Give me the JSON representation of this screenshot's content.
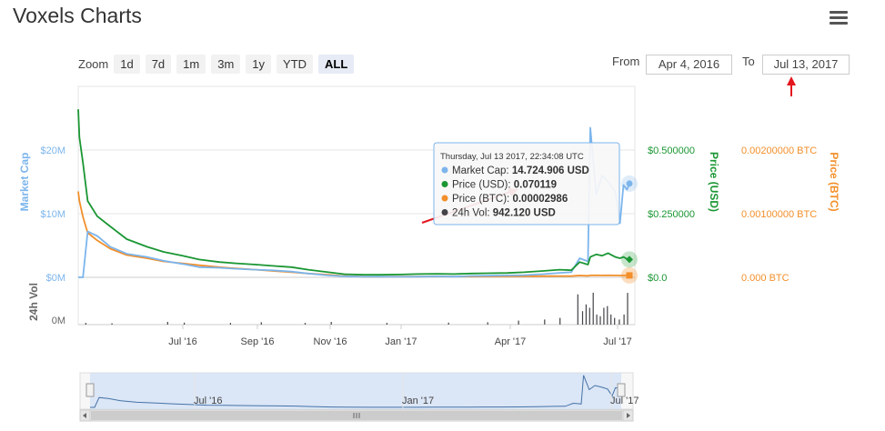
{
  "app_title": "Voxels Charts",
  "range_selector": {
    "zoom_label": "Zoom",
    "buttons": [
      "1d",
      "7d",
      "1m",
      "3m",
      "1y",
      "YTD",
      "ALL"
    ],
    "active": "ALL",
    "from_label": "From",
    "from_value": "Apr 4, 2016",
    "to_label": "To",
    "to_value": "Jul 13, 2017"
  },
  "chart_data": {
    "type": "line",
    "x_ticks": [
      "Jul '16",
      "Sep '16",
      "Nov '16",
      "Jan '17",
      "Apr '17",
      "Jul '17"
    ],
    "navigator_ticks": [
      "Jul '16",
      "Jan '17",
      "Jul '17"
    ],
    "axes": {
      "market_cap": {
        "title": "Market Cap",
        "ticks": [
          "$20M",
          "$10M",
          "$0M"
        ],
        "ylim": [
          0,
          20000000
        ]
      },
      "price_usd": {
        "title": "Price (USD)",
        "ticks": [
          "$0.500000",
          "$0.250000",
          "$0.0"
        ],
        "ylim": [
          0,
          0.5
        ]
      },
      "price_btc": {
        "title": "Price (BTC)",
        "ticks": [
          "0.00200000 BTC",
          "0.00100000 BTC",
          "0.000 BTC"
        ],
        "ylim": [
          0,
          0.002
        ]
      },
      "volume": {
        "title": "24h Vol",
        "ticks": [
          "0M"
        ]
      }
    },
    "x": [
      "2016-04-04",
      "2016-04-05",
      "2016-04-08",
      "2016-04-12",
      "2016-04-20",
      "2016-05-01",
      "2016-05-15",
      "2016-06-01",
      "2016-06-15",
      "2016-07-01",
      "2016-07-15",
      "2016-08-01",
      "2016-08-15",
      "2016-09-01",
      "2016-09-15",
      "2016-10-01",
      "2016-10-15",
      "2016-11-01",
      "2016-11-15",
      "2016-12-01",
      "2016-12-15",
      "2017-01-01",
      "2017-01-15",
      "2017-02-01",
      "2017-02-15",
      "2017-03-01",
      "2017-03-15",
      "2017-04-01",
      "2017-04-15",
      "2017-05-01",
      "2017-05-15",
      "2017-05-25",
      "2017-06-01",
      "2017-06-08",
      "2017-06-10",
      "2017-06-15",
      "2017-06-20",
      "2017-06-25",
      "2017-07-01",
      "2017-07-05",
      "2017-07-08",
      "2017-07-11",
      "2017-07-13"
    ],
    "series": [
      {
        "name": "Market Cap",
        "axis": "market_cap",
        "color": "#7cb5ec",
        "values": [
          0,
          0,
          0,
          7200000,
          6500000,
          4800000,
          3700000,
          3200000,
          2600000,
          2100000,
          1600000,
          1500000,
          1350000,
          1200000,
          1100000,
          900000,
          600000,
          300000,
          150000,
          80000,
          100000,
          90000,
          100000,
          150000,
          120000,
          220000,
          260000,
          300000,
          350000,
          500000,
          700000,
          800000,
          3000000,
          2500000,
          23500000,
          13000000,
          16000000,
          15000000,
          13500000,
          8500000,
          14500000,
          13800000,
          14724906
        ]
      },
      {
        "name": "Price (USD)",
        "axis": "price_usd",
        "color": "#1a9633",
        "values": [
          0.66,
          0.55,
          0.45,
          0.3,
          0.24,
          0.2,
          0.15,
          0.12,
          0.1,
          0.085,
          0.07,
          0.06,
          0.055,
          0.05,
          0.045,
          0.04,
          0.03,
          0.02,
          0.012,
          0.01,
          0.01,
          0.011,
          0.013,
          0.014,
          0.013,
          0.015,
          0.016,
          0.017,
          0.02,
          0.025,
          0.03,
          0.028,
          0.06,
          0.05,
          0.08,
          0.09,
          0.085,
          0.095,
          0.08,
          0.075,
          0.08,
          0.072,
          0.070119
        ]
      },
      {
        "name": "Price (BTC)",
        "axis": "price_btc",
        "color": "#f28f2a",
        "values": [
          0.00135,
          0.0012,
          0.00095,
          0.0007,
          0.00058,
          0.00045,
          0.00035,
          0.0003,
          0.00025,
          0.00022,
          0.00019,
          0.00016,
          0.00014,
          0.00012,
          0.0001,
          8e-05,
          6e-05,
          4e-05,
          2e-05,
          1e-05,
          1e-05,
          1.2e-05,
          1.2e-05,
          1.4e-05,
          1.3e-05,
          1.3e-05,
          1.4e-05,
          1.5e-05,
          1.6e-05,
          1.8e-05,
          2e-05,
          2e-05,
          2.8e-05,
          2.5e-05,
          3e-05,
          3.2e-05,
          3e-05,
          3.1e-05,
          3e-05,
          2.9e-05,
          3e-05,
          3e-05,
          2.986e-05
        ]
      }
    ],
    "volume": {
      "name": "24h Vol",
      "color": "#434348",
      "x": [
        "2016-04-10",
        "2016-05-02",
        "2016-06-18",
        "2016-07-02",
        "2016-08-10",
        "2016-09-05",
        "2016-10-12",
        "2016-11-03",
        "2016-12-20",
        "2017-02-10",
        "2017-03-15",
        "2017-04-10",
        "2017-05-02",
        "2017-05-15",
        "2017-05-30",
        "2017-06-03",
        "2017-06-06",
        "2017-06-09",
        "2017-06-12",
        "2017-06-15",
        "2017-06-18",
        "2017-06-21",
        "2017-06-24",
        "2017-06-27",
        "2017-06-30",
        "2017-07-04",
        "2017-07-08",
        "2017-07-11"
      ],
      "values": [
        0.05,
        0.04,
        0.08,
        0.06,
        0.05,
        0.07,
        0.05,
        0.08,
        0.05,
        0.06,
        0.07,
        0.12,
        0.15,
        0.2,
        0.9,
        0.4,
        0.6,
        0.5,
        0.95,
        0.3,
        0.25,
        0.5,
        0.55,
        0.3,
        0.2,
        0.15,
        0.3,
        0.942
      ]
    },
    "tooltip": {
      "date": "Thursday, Jul 13 2017, 22:34:08 UTC",
      "rows": [
        {
          "label": "Market Cap: ",
          "value": "14.724.906 USD",
          "color": "#7cb5ec"
        },
        {
          "label": "Price (USD): ",
          "value": "0.070119",
          "color": "#1a9633"
        },
        {
          "label": "Price (BTC): ",
          "value": "0.00002986",
          "color": "#f28f2a"
        },
        {
          "label": "24h Vol: ",
          "value": "942.120 USD",
          "color": "#434348"
        }
      ]
    }
  }
}
